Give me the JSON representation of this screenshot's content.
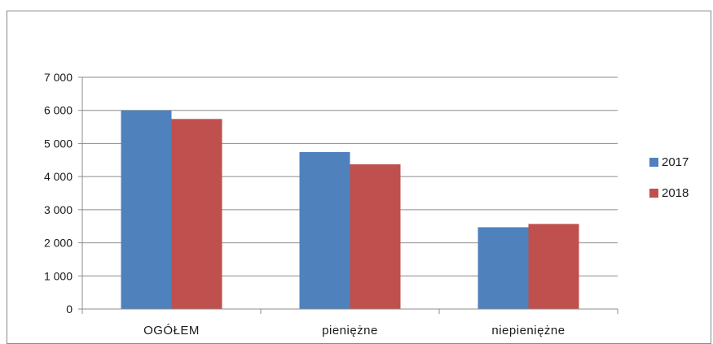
{
  "chart_data": {
    "type": "bar",
    "title": "",
    "xlabel": "",
    "ylabel": "",
    "categories": [
      "OGÓŁEM",
      "pieniężne",
      "niepieniężne"
    ],
    "series": [
      {
        "name": "2017",
        "color": "#4F81BD",
        "values": [
          6000,
          4740,
          2470
        ]
      },
      {
        "name": "2018",
        "color": "#C0504D",
        "values": [
          5740,
          4370,
          2570
        ]
      }
    ],
    "ylim": [
      0,
      7000
    ],
    "yticks": [
      0,
      1000,
      2000,
      3000,
      4000,
      5000,
      6000,
      7000
    ],
    "ytick_labels": [
      "0",
      "1 000",
      "2 000",
      "3 000",
      "4 000",
      "5 000",
      "6 000",
      "7 000"
    ],
    "grid": true,
    "legend_position": "right"
  }
}
